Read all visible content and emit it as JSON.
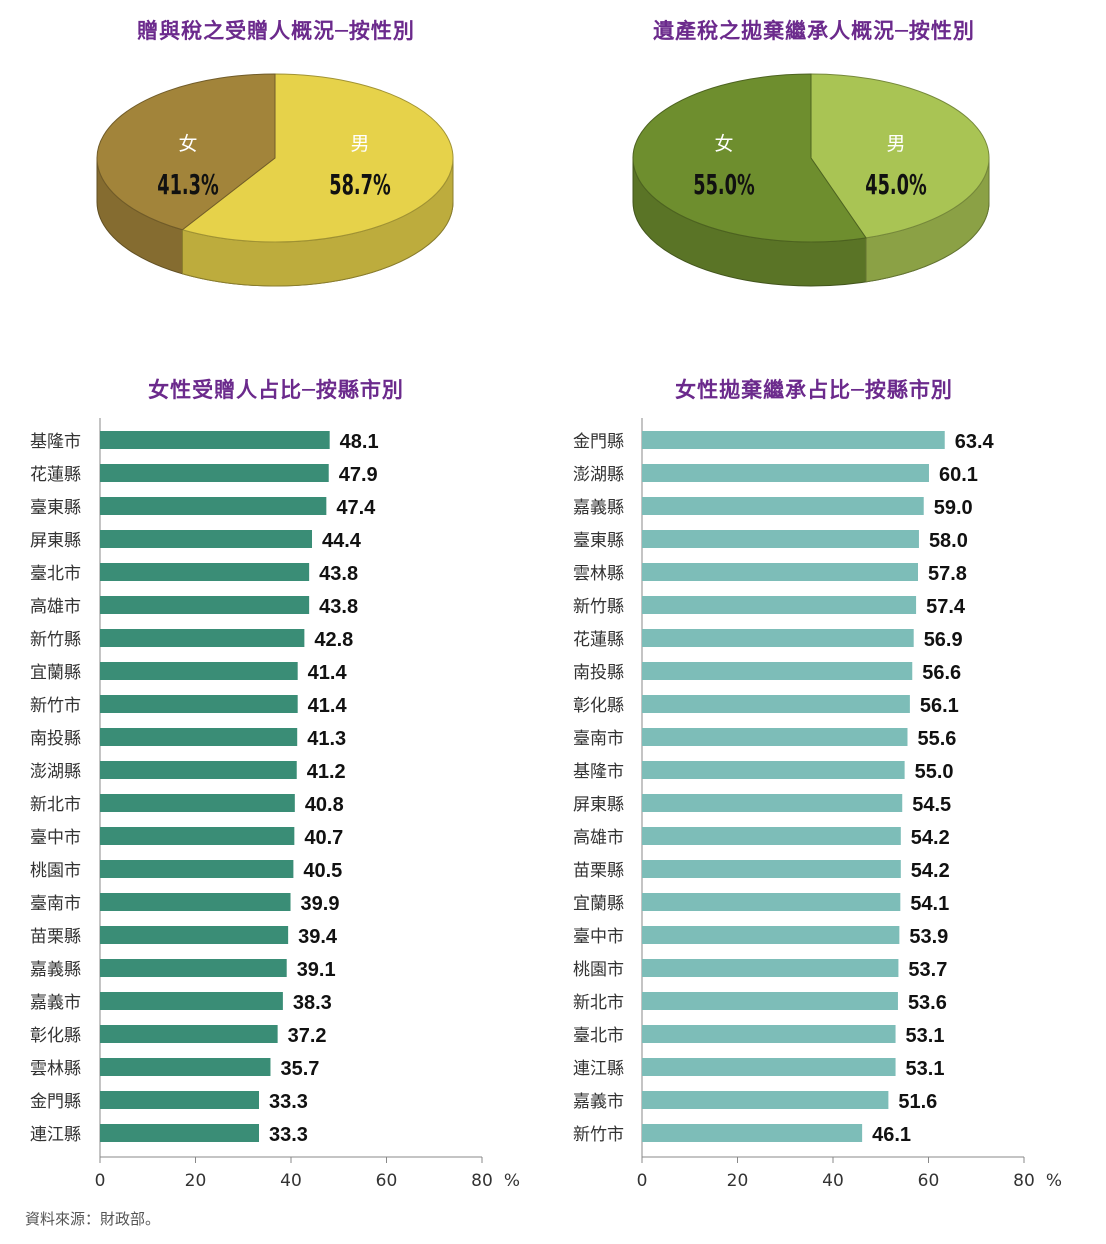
{
  "source": "資料來源：財政部。",
  "chart_data": [
    {
      "type": "pie",
      "title": "贈與稅之受贈人概況─按性別",
      "slices": [
        {
          "label": "男",
          "value": 58.7,
          "value_label": "58.7%",
          "color": "#e6d24a"
        },
        {
          "label": "女",
          "value": 41.3,
          "value_label": "41.3%",
          "color": "#a2843a"
        }
      ]
    },
    {
      "type": "pie",
      "title": "遺產稅之拋棄繼承人概況─按性別",
      "slices": [
        {
          "label": "男",
          "value": 45.0,
          "value_label": "45.0%",
          "color": "#a9c454"
        },
        {
          "label": "女",
          "value": 55.0,
          "value_label": "55.0%",
          "color": "#6e8e2e"
        }
      ]
    },
    {
      "type": "bar",
      "orientation": "horizontal",
      "title": "女性受贈人占比─按縣市別",
      "unit": "%",
      "xlim": [
        0,
        80
      ],
      "xticks": [
        "0",
        "20",
        "40",
        "60",
        "80"
      ],
      "color": "#3a8d76",
      "categories": [
        "基隆市",
        "花蓮縣",
        "臺東縣",
        "屏東縣",
        "臺北市",
        "高雄市",
        "新竹縣",
        "宜蘭縣",
        "新竹市",
        "南投縣",
        "澎湖縣",
        "新北市",
        "臺中市",
        "桃園市",
        "臺南市",
        "苗栗縣",
        "嘉義縣",
        "嘉義市",
        "彰化縣",
        "雲林縣",
        "金門縣",
        "連江縣"
      ],
      "values": [
        48.1,
        47.9,
        47.4,
        44.4,
        43.8,
        43.8,
        42.8,
        41.4,
        41.4,
        41.3,
        41.2,
        40.8,
        40.7,
        40.5,
        39.9,
        39.4,
        39.1,
        38.3,
        37.2,
        35.7,
        33.3,
        33.3
      ]
    },
    {
      "type": "bar",
      "orientation": "horizontal",
      "title": "女性拋棄繼承占比─按縣市別",
      "unit": "%",
      "xlim": [
        0,
        80
      ],
      "xticks": [
        "0",
        "20",
        "40",
        "60",
        "80"
      ],
      "color": "#7dbdb8",
      "categories": [
        "金門縣",
        "澎湖縣",
        "嘉義縣",
        "臺東縣",
        "雲林縣",
        "新竹縣",
        "花蓮縣",
        "南投縣",
        "彰化縣",
        "臺南市",
        "基隆市",
        "屏東縣",
        "高雄市",
        "苗栗縣",
        "宜蘭縣",
        "臺中市",
        "桃園市",
        "新北市",
        "臺北市",
        "連江縣",
        "嘉義市",
        "新竹市"
      ],
      "values": [
        63.4,
        60.1,
        59.0,
        58.0,
        57.8,
        57.4,
        56.9,
        56.6,
        56.1,
        55.6,
        55.0,
        54.5,
        54.2,
        54.2,
        54.1,
        53.9,
        53.7,
        53.6,
        53.1,
        53.1,
        51.6,
        46.1
      ]
    }
  ]
}
